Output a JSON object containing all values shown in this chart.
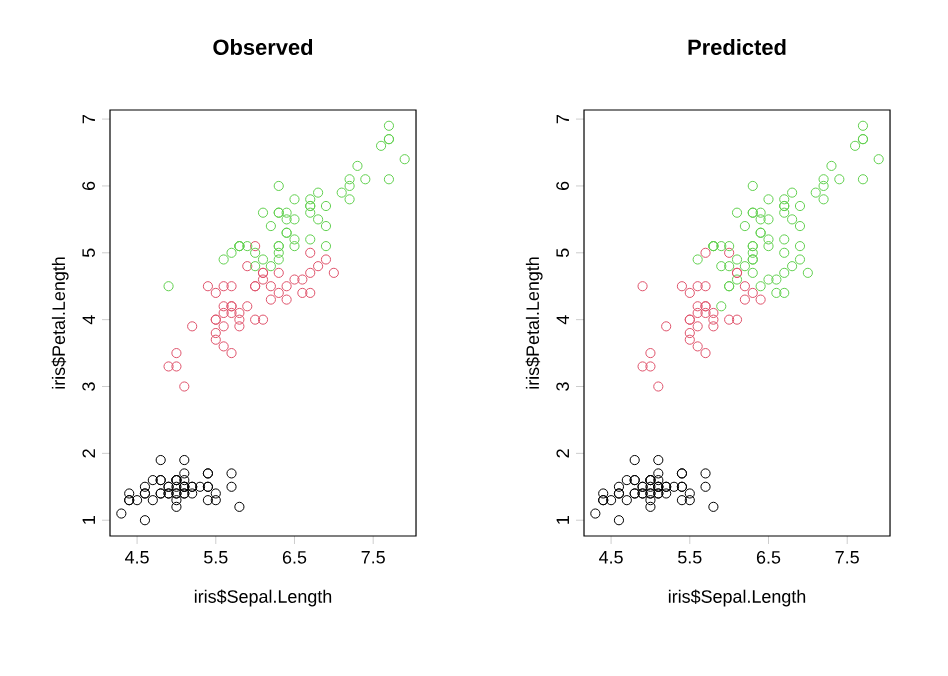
{
  "chart_data": [
    {
      "type": "scatter",
      "title": "Observed",
      "xlabel": "iris$Sepal.Length",
      "ylabel": "iris$Petal.Length",
      "marker": "circle",
      "xlim": [
        4.156,
        8.044
      ],
      "ylim": [
        0.764,
        7.136
      ],
      "xticks": [
        4.5,
        5.5,
        6.5,
        7.5
      ],
      "yticks": [
        1,
        2,
        3,
        4,
        5,
        6,
        7
      ],
      "series": [
        {
          "color": "#000000",
          "x": [
            5.1,
            4.9,
            4.7,
            4.6,
            5.0,
            5.4,
            4.6,
            5.0,
            4.4,
            4.9,
            5.4,
            4.8,
            4.8,
            4.3,
            5.8,
            5.7,
            5.4,
            5.1,
            5.7,
            5.1,
            5.4,
            5.1,
            4.6,
            5.1,
            4.8,
            5.0,
            5.0,
            5.2,
            5.2,
            4.7,
            4.8,
            5.4,
            5.2,
            5.5,
            4.9,
            5.0,
            5.5,
            4.9,
            4.4,
            5.1,
            5.0,
            4.5,
            4.4,
            5.0,
            5.1,
            4.8,
            5.1,
            4.6,
            5.3,
            5.0
          ],
          "values": [
            1.4,
            1.4,
            1.3,
            1.5,
            1.4,
            1.7,
            1.4,
            1.5,
            1.4,
            1.5,
            1.5,
            1.6,
            1.4,
            1.1,
            1.2,
            1.5,
            1.3,
            1.4,
            1.7,
            1.5,
            1.7,
            1.5,
            1.0,
            1.7,
            1.9,
            1.6,
            1.6,
            1.5,
            1.4,
            1.6,
            1.6,
            1.5,
            1.5,
            1.4,
            1.5,
            1.2,
            1.3,
            1.4,
            1.3,
            1.5,
            1.3,
            1.3,
            1.3,
            1.6,
            1.9,
            1.4,
            1.6,
            1.4,
            1.5,
            1.4
          ]
        },
        {
          "color": "#df536b",
          "x": [
            7.0,
            6.4,
            6.9,
            5.5,
            6.5,
            5.7,
            6.3,
            4.9,
            6.6,
            5.2,
            5.0,
            5.9,
            6.0,
            6.1,
            5.6,
            6.7,
            5.6,
            5.8,
            6.2,
            5.6,
            5.9,
            6.1,
            6.1,
            6.4,
            6.6,
            6.8,
            6.7,
            6.0,
            5.7,
            5.5,
            5.5,
            5.8,
            6.0,
            5.4,
            6.0,
            6.7,
            6.3,
            5.6,
            5.5,
            5.5,
            6.1,
            5.8,
            5.0,
            5.6,
            5.7,
            5.7,
            6.2,
            5.1,
            5.7
          ],
          "values": [
            4.7,
            4.5,
            4.9,
            4.0,
            4.6,
            4.5,
            4.7,
            3.3,
            4.6,
            3.9,
            3.5,
            4.2,
            4.0,
            4.7,
            3.6,
            4.4,
            4.5,
            4.1,
            4.5,
            3.9,
            4.8,
            4.0,
            4.7,
            4.3,
            4.4,
            4.8,
            5.0,
            4.5,
            3.5,
            3.8,
            3.7,
            3.9,
            5.1,
            4.5,
            4.5,
            4.7,
            4.4,
            4.1,
            4.0,
            4.4,
            4.6,
            4.0,
            3.3,
            4.2,
            4.2,
            4.2,
            4.3,
            3.0,
            4.1
          ]
        },
        {
          "color": "#61d04f",
          "x": [
            6.3,
            5.8,
            7.1,
            6.3,
            6.5,
            7.6,
            4.9,
            7.3,
            6.7,
            7.2,
            6.5,
            6.4,
            6.8,
            5.7,
            5.8,
            6.4,
            6.5,
            7.7,
            7.7,
            6.0,
            6.9,
            5.6,
            7.7,
            6.3,
            6.7,
            7.2,
            6.2,
            6.1,
            6.4,
            7.2,
            7.4,
            7.9,
            6.3,
            6.3,
            6.1,
            7.7,
            6.3,
            6.4,
            6.0,
            6.9,
            6.7,
            6.9,
            5.8,
            6.8,
            6.7,
            6.7,
            6.3,
            6.5,
            6.2,
            5.9
          ],
          "values": [
            6.0,
            5.1,
            5.9,
            5.6,
            5.8,
            6.6,
            4.5,
            6.3,
            5.8,
            6.1,
            5.1,
            5.3,
            5.5,
            5.0,
            5.1,
            5.3,
            5.5,
            6.7,
            6.9,
            5.0,
            5.7,
            4.9,
            6.7,
            4.9,
            5.7,
            6.0,
            4.8,
            4.9,
            5.6,
            5.8,
            6.1,
            6.4,
            5.1,
            5.1,
            5.6,
            6.1,
            5.6,
            5.5,
            4.8,
            5.4,
            5.6,
            5.1,
            5.1,
            5.9,
            5.7,
            5.2,
            5.0,
            5.2,
            5.4,
            5.1
          ]
        }
      ]
    },
    {
      "type": "scatter",
      "title": "Predicted",
      "xlabel": "iris$Sepal.Length",
      "ylabel": "iris$Petal.Length",
      "marker": "circle",
      "xlim": [
        4.156,
        8.044
      ],
      "ylim": [
        0.764,
        7.136
      ],
      "xticks": [
        4.5,
        5.5,
        6.5,
        7.5
      ],
      "yticks": [
        1,
        2,
        3,
        4,
        5,
        6,
        7
      ],
      "series": [
        {
          "color": "#000000",
          "x": [
            5.1,
            4.9,
            4.7,
            4.6,
            5.0,
            5.4,
            4.6,
            5.0,
            4.4,
            4.9,
            5.4,
            4.8,
            4.8,
            4.3,
            5.8,
            5.7,
            5.4,
            5.1,
            5.7,
            5.1,
            5.4,
            5.1,
            4.6,
            5.1,
            4.8,
            5.0,
            5.0,
            5.2,
            5.2,
            4.7,
            4.8,
            5.4,
            5.2,
            5.5,
            4.9,
            5.0,
            5.5,
            4.9,
            4.4,
            5.1,
            5.0,
            4.5,
            4.4,
            5.0,
            5.1,
            4.8,
            5.1,
            4.6,
            5.3,
            5.0
          ],
          "values": [
            1.4,
            1.4,
            1.3,
            1.5,
            1.4,
            1.7,
            1.4,
            1.5,
            1.4,
            1.5,
            1.5,
            1.6,
            1.4,
            1.1,
            1.2,
            1.5,
            1.3,
            1.4,
            1.7,
            1.5,
            1.7,
            1.5,
            1.0,
            1.7,
            1.9,
            1.6,
            1.6,
            1.5,
            1.4,
            1.6,
            1.6,
            1.5,
            1.5,
            1.4,
            1.5,
            1.2,
            1.3,
            1.4,
            1.3,
            1.5,
            1.3,
            1.3,
            1.3,
            1.6,
            1.9,
            1.4,
            1.6,
            1.4,
            1.5,
            1.4
          ]
        },
        {
          "color": "#df536b",
          "x": [
            5.5,
            5.7,
            4.9,
            5.2,
            5.0,
            6.0,
            6.1,
            5.6,
            5.6,
            5.8,
            6.2,
            5.6,
            6.1,
            6.1,
            6.4,
            5.7,
            5.5,
            5.5,
            5.8,
            5.4,
            6.3,
            5.6,
            5.5,
            5.5,
            5.8,
            5.0,
            5.6,
            5.7,
            5.7,
            6.2,
            5.1,
            5.7,
            4.9,
            5.7,
            6.0
          ],
          "values": [
            4.0,
            4.5,
            3.3,
            3.9,
            3.5,
            4.0,
            4.7,
            3.6,
            4.5,
            4.1,
            4.5,
            3.9,
            4.0,
            4.7,
            4.3,
            3.5,
            3.8,
            3.7,
            3.9,
            4.5,
            4.4,
            4.1,
            4.0,
            4.4,
            4.0,
            3.3,
            4.2,
            4.2,
            4.2,
            4.3,
            3.0,
            4.1,
            4.5,
            5.0,
            5.0
          ]
        },
        {
          "color": "#61d04f",
          "x": [
            6.3,
            5.8,
            7.1,
            6.3,
            6.5,
            7.6,
            7.3,
            6.7,
            7.2,
            6.5,
            6.4,
            6.8,
            5.8,
            6.4,
            6.5,
            7.7,
            7.7,
            6.9,
            5.6,
            7.7,
            6.3,
            6.7,
            7.2,
            6.2,
            6.1,
            6.4,
            7.2,
            7.4,
            7.9,
            6.3,
            6.3,
            6.1,
            7.7,
            6.3,
            6.4,
            6.0,
            6.9,
            6.7,
            6.9,
            5.8,
            6.8,
            6.7,
            6.7,
            6.3,
            6.5,
            6.2,
            5.9,
            7.0,
            6.4,
            6.9,
            6.5,
            6.3,
            6.6,
            5.9,
            6.7,
            5.9,
            6.3,
            6.6,
            6.8,
            6.7,
            6.0,
            6.0,
            6.0,
            6.7,
            6.1
          ],
          "values": [
            6.0,
            5.1,
            5.9,
            5.6,
            5.8,
            6.6,
            6.3,
            5.8,
            6.1,
            5.1,
            5.3,
            5.5,
            5.1,
            5.3,
            5.5,
            6.7,
            6.9,
            5.7,
            4.9,
            6.7,
            4.9,
            5.7,
            6.0,
            4.8,
            4.9,
            5.6,
            5.8,
            6.1,
            6.4,
            5.1,
            5.1,
            5.6,
            6.1,
            5.6,
            5.5,
            4.8,
            5.4,
            5.6,
            5.1,
            5.1,
            5.9,
            5.7,
            5.2,
            5.0,
            5.2,
            5.4,
            5.1,
            4.7,
            4.5,
            4.9,
            4.6,
            4.7,
            4.6,
            4.2,
            4.4,
            4.8,
            4.9,
            4.4,
            4.8,
            5.0,
            4.5,
            5.1,
            4.5,
            4.7,
            4.6
          ]
        }
      ]
    }
  ]
}
